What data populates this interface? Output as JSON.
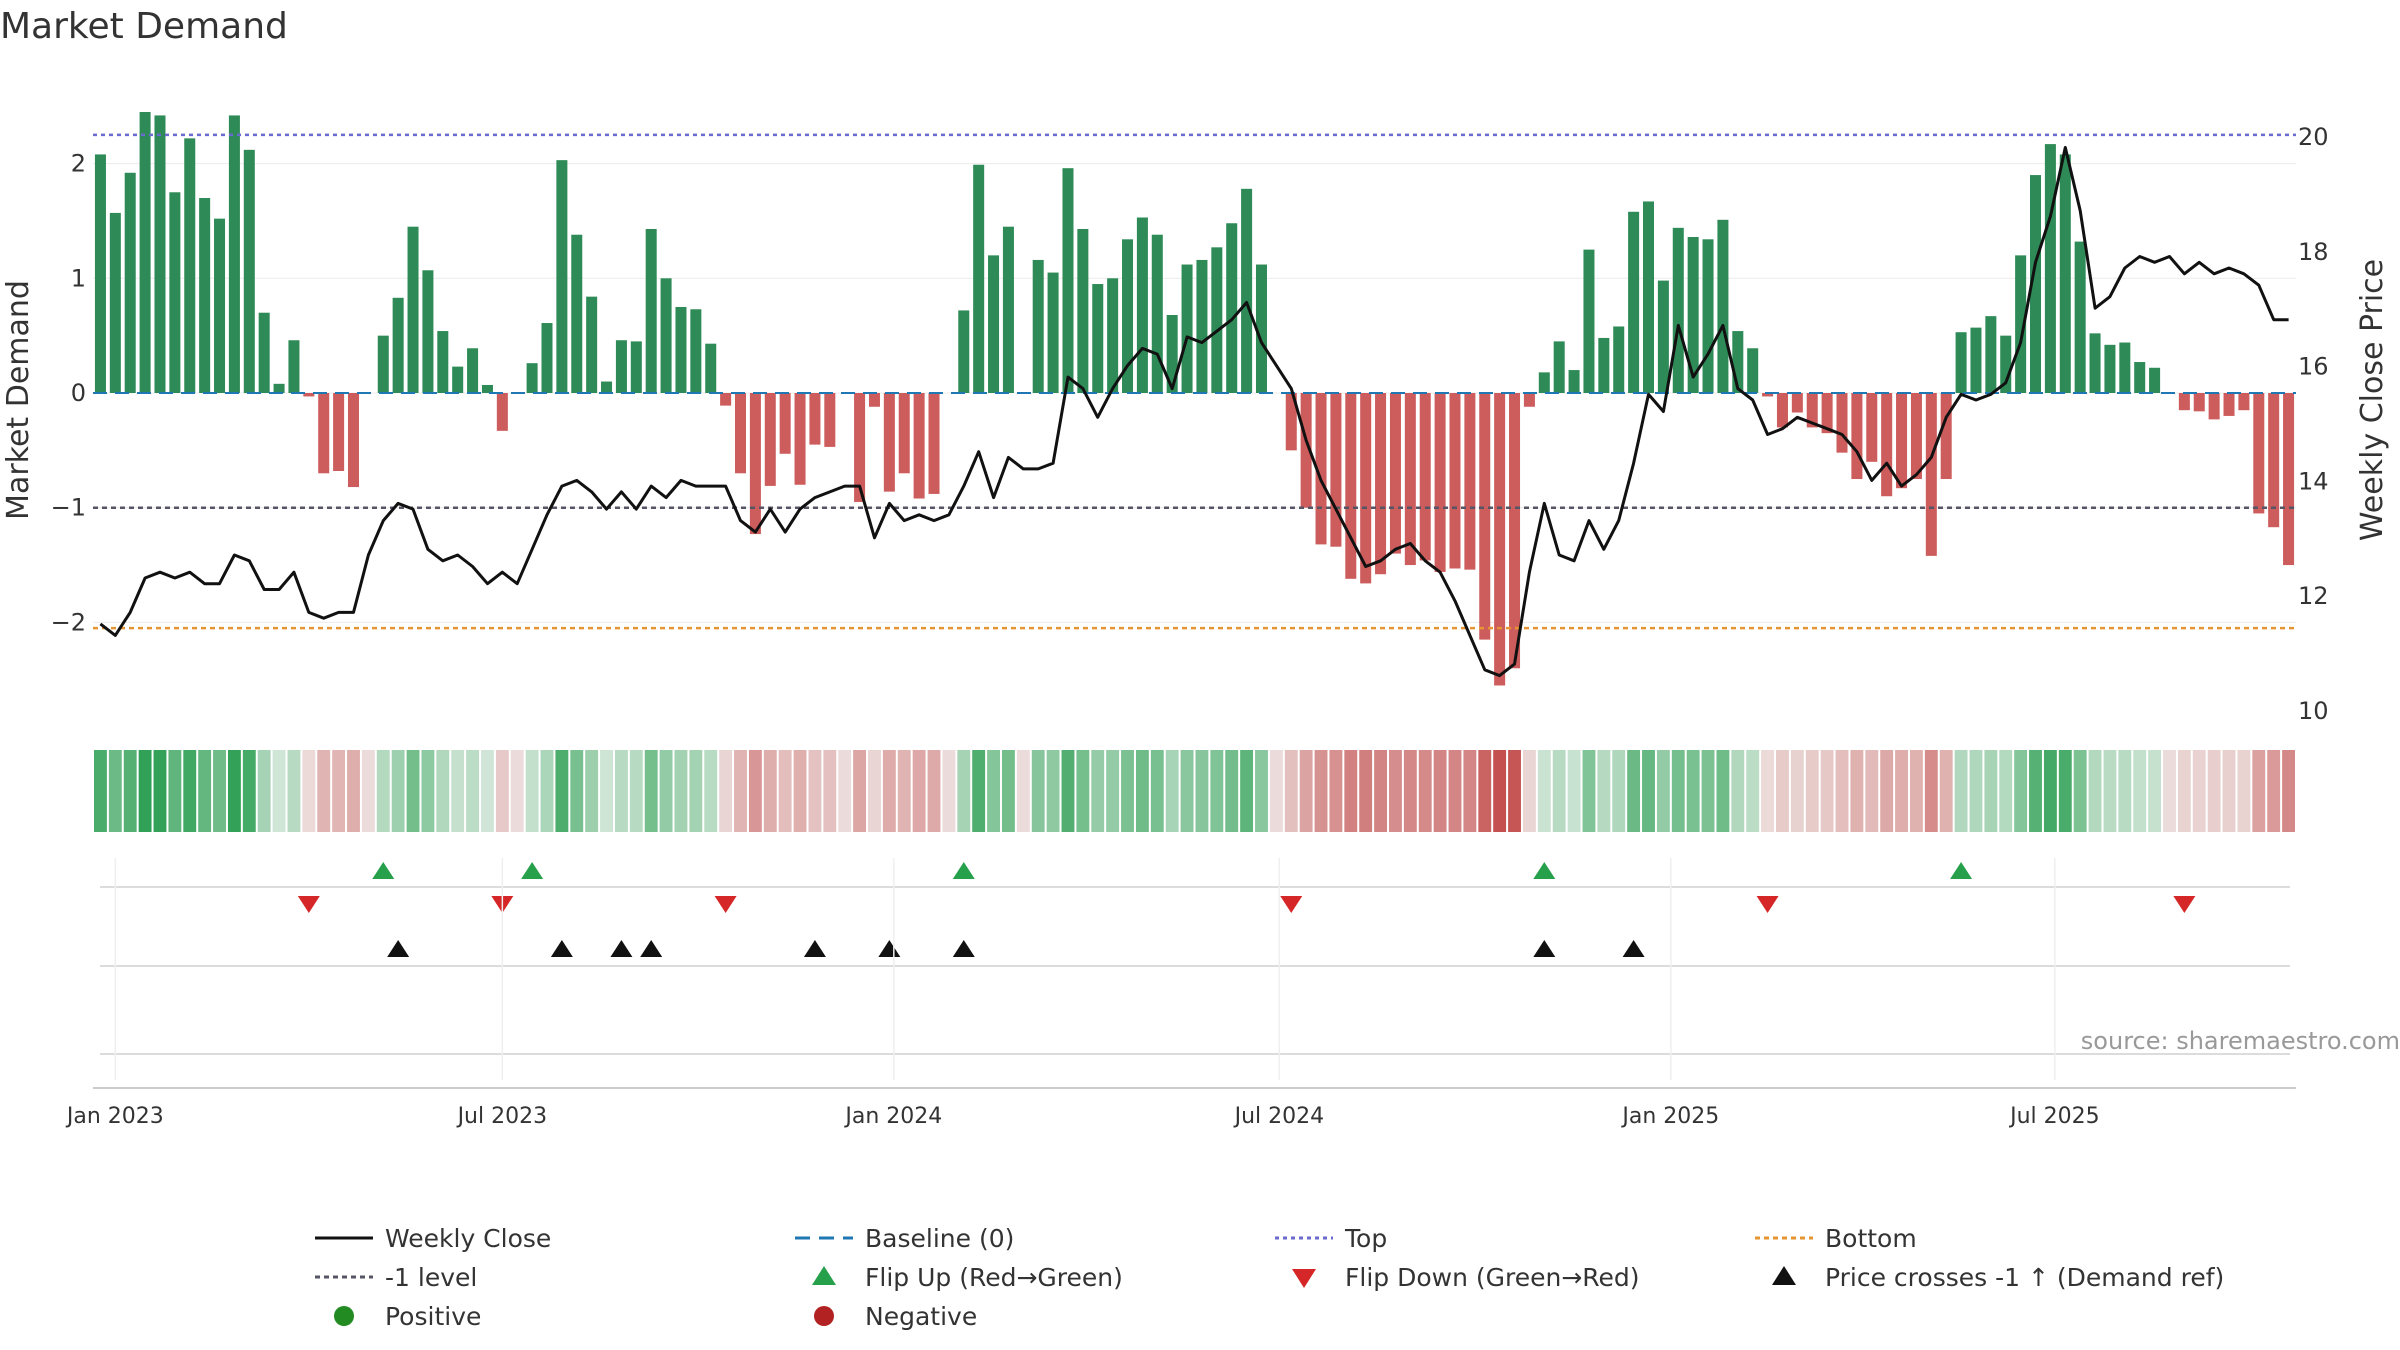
{
  "chart_data": {
    "type": "bar",
    "title": "Market Demand",
    "ylabel_left": "Market Demand",
    "ylabel_right": "Weekly Close Price",
    "ylim_left": [
      -2.7,
      2.7
    ],
    "ylim_right": [
      10,
      21
    ],
    "yticks_left": [
      2,
      1,
      0,
      -1,
      -2
    ],
    "ytick_labels_left": [
      "2",
      "1",
      "0",
      "−1",
      "−2"
    ],
    "yticks_right": [
      20,
      18,
      16,
      14,
      12,
      10
    ],
    "ytick_labels_right": [
      "20",
      "18",
      "16",
      "14",
      "12",
      "10"
    ],
    "x_start": "2022-12-23",
    "x_step_days": 7,
    "x_ticks": [
      {
        "label": "Jan 2023",
        "week": 1.5
      },
      {
        "label": "Jul 2023",
        "week": 27.5
      },
      {
        "label": "Jan 2024",
        "week": 53.8
      },
      {
        "label": "Jul 2024",
        "week": 79.7
      },
      {
        "label": "Jan 2025",
        "week": 106
      },
      {
        "label": "Jul 2025",
        "week": 131.8
      }
    ],
    "reference_lines": {
      "top": 2.25,
      "bottom": -2.05,
      "minus_one": -1,
      "baseline": 0
    },
    "demand": [
      2.08,
      1.57,
      1.92,
      2.45,
      2.42,
      1.75,
      2.22,
      1.7,
      1.52,
      2.42,
      2.12,
      0.7,
      0.08,
      0.46,
      -0.03,
      -0.7,
      -0.68,
      -0.82,
      0,
      0.5,
      0.83,
      1.45,
      1.07,
      0.54,
      0.23,
      0.39,
      0.07,
      -0.33,
      0,
      0.26,
      0.61,
      2.03,
      1.38,
      0.84,
      0.1,
      0.46,
      0.45,
      1.43,
      1.0,
      0.75,
      0.73,
      0.43,
      -0.11,
      -0.7,
      -1.23,
      -0.81,
      -0.53,
      -0.8,
      -0.45,
      -0.47,
      0,
      -0.95,
      -0.12,
      -0.86,
      -0.7,
      -0.92,
      -0.88,
      0,
      0.72,
      1.99,
      1.2,
      1.45,
      0,
      1.16,
      1.05,
      1.96,
      1.43,
      0.95,
      1.0,
      1.34,
      1.53,
      1.38,
      0.68,
      1.12,
      1.16,
      1.27,
      1.48,
      1.78,
      1.12,
      0,
      -0.5,
      -1.0,
      -1.32,
      -1.34,
      -1.62,
      -1.66,
      -1.58,
      -1.4,
      -1.5,
      -1.46,
      -1.56,
      -1.53,
      -1.54,
      -2.15,
      -2.55,
      -2.4,
      -0.12,
      0.18,
      0.45,
      0.2,
      1.25,
      0.48,
      0.58,
      1.58,
      1.67,
      0.98,
      1.44,
      1.36,
      1.34,
      1.51,
      0.54,
      0.39,
      -0.03,
      -0.3,
      -0.17,
      -0.3,
      -0.35,
      -0.52,
      -0.75,
      -0.6,
      -0.9,
      -0.83,
      -0.75,
      -1.42,
      -0.75,
      0.53,
      0.57,
      0.67,
      0.5,
      1.2,
      1.9,
      2.17,
      2.08,
      1.32,
      0.52,
      0.42,
      0.44,
      0.27,
      0.22,
      0,
      -0.15,
      -0.16,
      -0.23,
      -0.2,
      -0.15,
      -1.05,
      -1.17,
      -1.5
    ],
    "weekly_close": [
      11.5,
      11.3,
      11.7,
      12.3,
      12.4,
      12.3,
      12.4,
      12.2,
      12.2,
      12.7,
      12.6,
      12.1,
      12.1,
      12.4,
      11.7,
      11.6,
      11.7,
      11.7,
      12.7,
      13.3,
      13.6,
      13.5,
      12.8,
      12.6,
      12.7,
      12.5,
      12.2,
      12.4,
      12.2,
      12.8,
      13.4,
      13.9,
      14.0,
      13.8,
      13.5,
      13.8,
      13.5,
      13.9,
      13.7,
      14.0,
      13.9,
      13.9,
      13.9,
      13.3,
      13.1,
      13.5,
      13.1,
      13.5,
      13.7,
      13.8,
      13.9,
      13.9,
      13.0,
      13.6,
      13.3,
      13.4,
      13.3,
      13.4,
      13.9,
      14.5,
      13.7,
      14.4,
      14.2,
      14.2,
      14.3,
      15.8,
      15.6,
      15.1,
      15.6,
      16.0,
      16.3,
      16.2,
      15.6,
      16.5,
      16.4,
      16.6,
      16.8,
      17.1,
      16.4,
      16.0,
      15.6,
      14.7,
      14.0,
      13.5,
      13.0,
      12.5,
      12.6,
      12.8,
      12.9,
      12.6,
      12.4,
      11.9,
      11.3,
      10.7,
      10.6,
      10.8,
      12.4,
      13.6,
      12.7,
      12.6,
      13.3,
      12.8,
      13.3,
      14.3,
      15.5,
      15.2,
      16.7,
      15.8,
      16.2,
      16.7,
      15.6,
      15.4,
      14.8,
      14.9,
      15.1,
      15.0,
      14.9,
      14.8,
      14.5,
      14.0,
      14.3,
      13.9,
      14.1,
      14.4,
      15.1,
      15.5,
      15.4,
      15.5,
      15.7,
      16.4,
      17.8,
      18.6,
      19.8,
      18.7,
      17.0,
      17.2,
      17.7,
      17.9,
      17.8,
      17.9,
      17.6,
      17.8,
      17.6,
      17.7,
      17.6,
      17.4,
      16.8,
      16.8
    ]
  },
  "sources": {
    "text": "source: sharemaestro.com"
  },
  "legend": {
    "items": [
      {
        "key": "close",
        "label": "Weekly Close"
      },
      {
        "key": "baseline",
        "label": "Baseline (0)"
      },
      {
        "key": "top",
        "label": "Top"
      },
      {
        "key": "bottom",
        "label": "Bottom"
      },
      {
        "key": "minus1",
        "label": "-1 level"
      },
      {
        "key": "flipup",
        "label": "Flip Up (Red→Green)"
      },
      {
        "key": "flipdown",
        "label": "Flip Down (Green→Red)"
      },
      {
        "key": "pricecross",
        "label": "Price crosses -1 ↑ (Demand ref)"
      },
      {
        "key": "positive",
        "label": "Positive"
      },
      {
        "key": "negative",
        "label": "Negative"
      }
    ]
  },
  "colors": {
    "positive_bar": "#2e8b57",
    "negative_bar": "#cd5c5c",
    "close_line": "#111111",
    "baseline": "#1f77b4",
    "top": "#6a6ad0",
    "bottom": "#e69532",
    "minus_one": "#555566",
    "flip_up": "#27a04b",
    "flip_down": "#d62728",
    "price_cross": "#111111",
    "positive_dot": "#228b22",
    "negative_dot": "#b22222"
  }
}
